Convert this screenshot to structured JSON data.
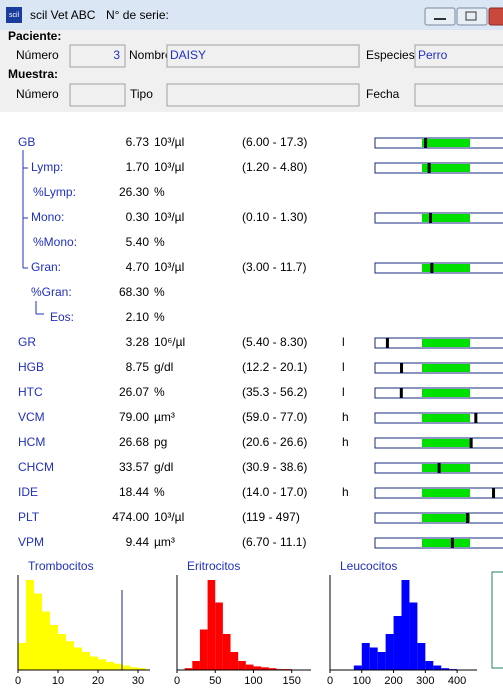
{
  "window": {
    "icon": "scil",
    "app": "scil Vet ABC",
    "serial_label": "N° de serie:"
  },
  "patient": {
    "heading": "Paciente:",
    "number_label": "Número",
    "number": "3",
    "name_label": "Nombre",
    "name": "DAISY",
    "species_label": "Especies",
    "species": "Perro"
  },
  "sample": {
    "heading": "Muestra:",
    "number_label": "Número",
    "type_label": "Tipo",
    "date_label": "Fecha"
  },
  "results": [
    {
      "name": "GB",
      "value": "6.73",
      "unit": "10³/µl",
      "range": "(6.00  -  17.3)"
    },
    {
      "name": "Lymp:",
      "value": "1.70",
      "unit": "10³/µl",
      "range": "(1.20  -  4.80)"
    },
    {
      "name": "%Lymp:",
      "value": "26.30",
      "unit": "%"
    },
    {
      "name": "Mono:",
      "value": "0.30",
      "unit": "10³/µl",
      "range": "(0.10  -  1.30)"
    },
    {
      "name": "%Mono:",
      "value": "5.40",
      "unit": "%"
    },
    {
      "name": "Gran:",
      "value": "4.70",
      "unit": "10³/µl",
      "range": "(3.00  -  11.7)"
    },
    {
      "name": "%Gran:",
      "value": "68.30",
      "unit": "%"
    },
    {
      "name": "Eos:",
      "value": "2.10",
      "unit": "%"
    },
    {
      "name": "GR",
      "value": "3.28",
      "unit": "10⁶/µl",
      "range": "(5.40  -  8.30)",
      "flag": "l"
    },
    {
      "name": "HGB",
      "value": "8.75",
      "unit": "g/dl",
      "range": "(12.2  -  20.1)",
      "flag": "l"
    },
    {
      "name": "HTC",
      "value": "26.07",
      "unit": "%",
      "range": "(35.3  -  56.2)",
      "flag": "l"
    },
    {
      "name": "VCM",
      "value": "79.00",
      "unit": "µm³",
      "range": "(59.0  -  77.0)",
      "flag": "h"
    },
    {
      "name": "HCM",
      "value": "26.68",
      "unit": "pg",
      "range": "(20.6  -  26.6)",
      "flag": "h"
    },
    {
      "name": "CHCM",
      "value": "33.57",
      "unit": "g/dl",
      "range": "(30.9  -  38.6)"
    },
    {
      "name": "IDE",
      "value": "18.44",
      "unit": "%",
      "range": "(14.0  -  17.0)",
      "flag": "h"
    },
    {
      "name": "PLT",
      "value": "474.00",
      "unit": "10³/µl",
      "range": "(119  -  497)"
    },
    {
      "name": "VPM",
      "value": "9.44",
      "unit": "µm³",
      "range": "(6.70  -  11.1)"
    }
  ],
  "histograms": [
    {
      "title": "Trombocitos",
      "color": "#ffff00",
      "xlim": [
        0,
        32
      ],
      "ylim": [
        0,
        100
      ],
      "xticks": [
        0,
        10,
        20,
        30
      ],
      "threshold": 26,
      "bins": [
        0,
        2,
        4,
        6,
        8,
        10,
        12,
        14,
        16,
        18,
        20,
        22,
        24,
        26,
        28,
        30,
        32
      ],
      "counts": [
        30,
        100,
        85,
        65,
        50,
        40,
        32,
        25,
        20,
        15,
        12,
        9,
        7,
        5,
        3,
        2
      ]
    },
    {
      "title": "Eritrocitos",
      "color": "#ff0000",
      "xlim": [
        0,
        170
      ],
      "ylim": [
        0,
        100
      ],
      "xticks": [
        0,
        50,
        100,
        150
      ],
      "bins": [
        0,
        10,
        20,
        30,
        40,
        50,
        60,
        70,
        80,
        90,
        100,
        110,
        120,
        130,
        140,
        150,
        160
      ],
      "counts": [
        0,
        2,
        10,
        45,
        100,
        75,
        40,
        20,
        10,
        6,
        4,
        3,
        2,
        1,
        1,
        0
      ]
    },
    {
      "title": "Leucocitos",
      "color": "#0000ff",
      "xlim": [
        0,
        450
      ],
      "ylim": [
        0,
        100
      ],
      "xticks": [
        0,
        100,
        200,
        300,
        400
      ],
      "bins": [
        0,
        25,
        50,
        75,
        100,
        125,
        150,
        175,
        200,
        225,
        250,
        275,
        300,
        325,
        350,
        375,
        400,
        425,
        450
      ],
      "counts": [
        0,
        0,
        0,
        5,
        30,
        25,
        20,
        40,
        60,
        100,
        75,
        30,
        10,
        5,
        2,
        1,
        0,
        0
      ]
    }
  ]
}
